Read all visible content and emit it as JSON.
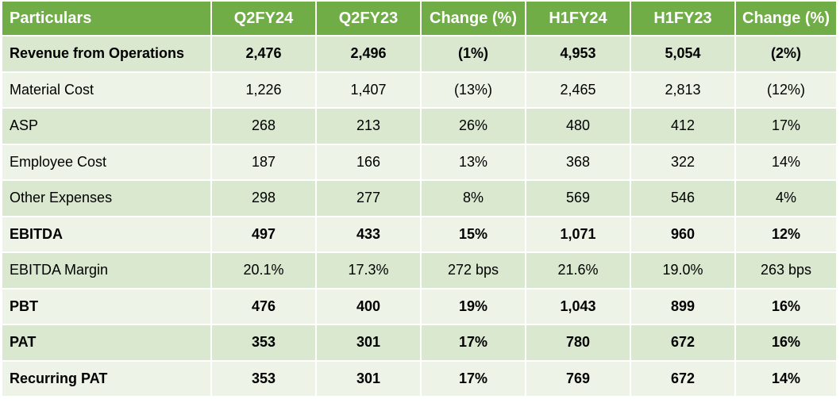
{
  "chart_data": {
    "type": "table",
    "columns": [
      "Particulars",
      "Q2FY24",
      "Q2FY23",
      "Change (%)",
      "H1FY24",
      "H1FY23",
      "Change (%)"
    ],
    "rows": [
      {
        "label": "Revenue from Operations",
        "bold": true,
        "cells": [
          "2,476",
          "2,496",
          "(1%)",
          "4,953",
          "5,054",
          "(2%)"
        ]
      },
      {
        "label": "Material Cost",
        "bold": false,
        "cells": [
          "1,226",
          "1,407",
          "(13%)",
          "2,465",
          "2,813",
          "(12%)"
        ]
      },
      {
        "label": "ASP",
        "bold": false,
        "cells": [
          "268",
          "213",
          "26%",
          "480",
          "412",
          "17%"
        ]
      },
      {
        "label": "Employee Cost",
        "bold": false,
        "cells": [
          "187",
          "166",
          "13%",
          "368",
          "322",
          "14%"
        ]
      },
      {
        "label": "Other Expenses",
        "bold": false,
        "cells": [
          "298",
          "277",
          "8%",
          "569",
          "546",
          "4%"
        ]
      },
      {
        "label": "EBITDA",
        "bold": true,
        "cells": [
          "497",
          "433",
          "15%",
          "1,071",
          "960",
          "12%"
        ]
      },
      {
        "label": "EBITDA Margin",
        "bold": false,
        "cells": [
          "20.1%",
          "17.3%",
          "272 bps",
          "21.6%",
          "19.0%",
          "263 bps"
        ]
      },
      {
        "label": "PBT",
        "bold": true,
        "cells": [
          "476",
          "400",
          "19%",
          "1,043",
          "899",
          "16%"
        ]
      },
      {
        "label": "PAT",
        "bold": true,
        "cells": [
          "353",
          "301",
          "17%",
          "780",
          "672",
          "16%"
        ]
      },
      {
        "label": "Recurring PAT",
        "bold": true,
        "cells": [
          "353",
          "301",
          "17%",
          "769",
          "672",
          "14%"
        ]
      }
    ]
  },
  "colors": {
    "header_bg": "#70ad47",
    "header_text": "#ffffff",
    "row_shade_dark": "#d9e8cf",
    "row_shade_light": "#edf4e7"
  }
}
